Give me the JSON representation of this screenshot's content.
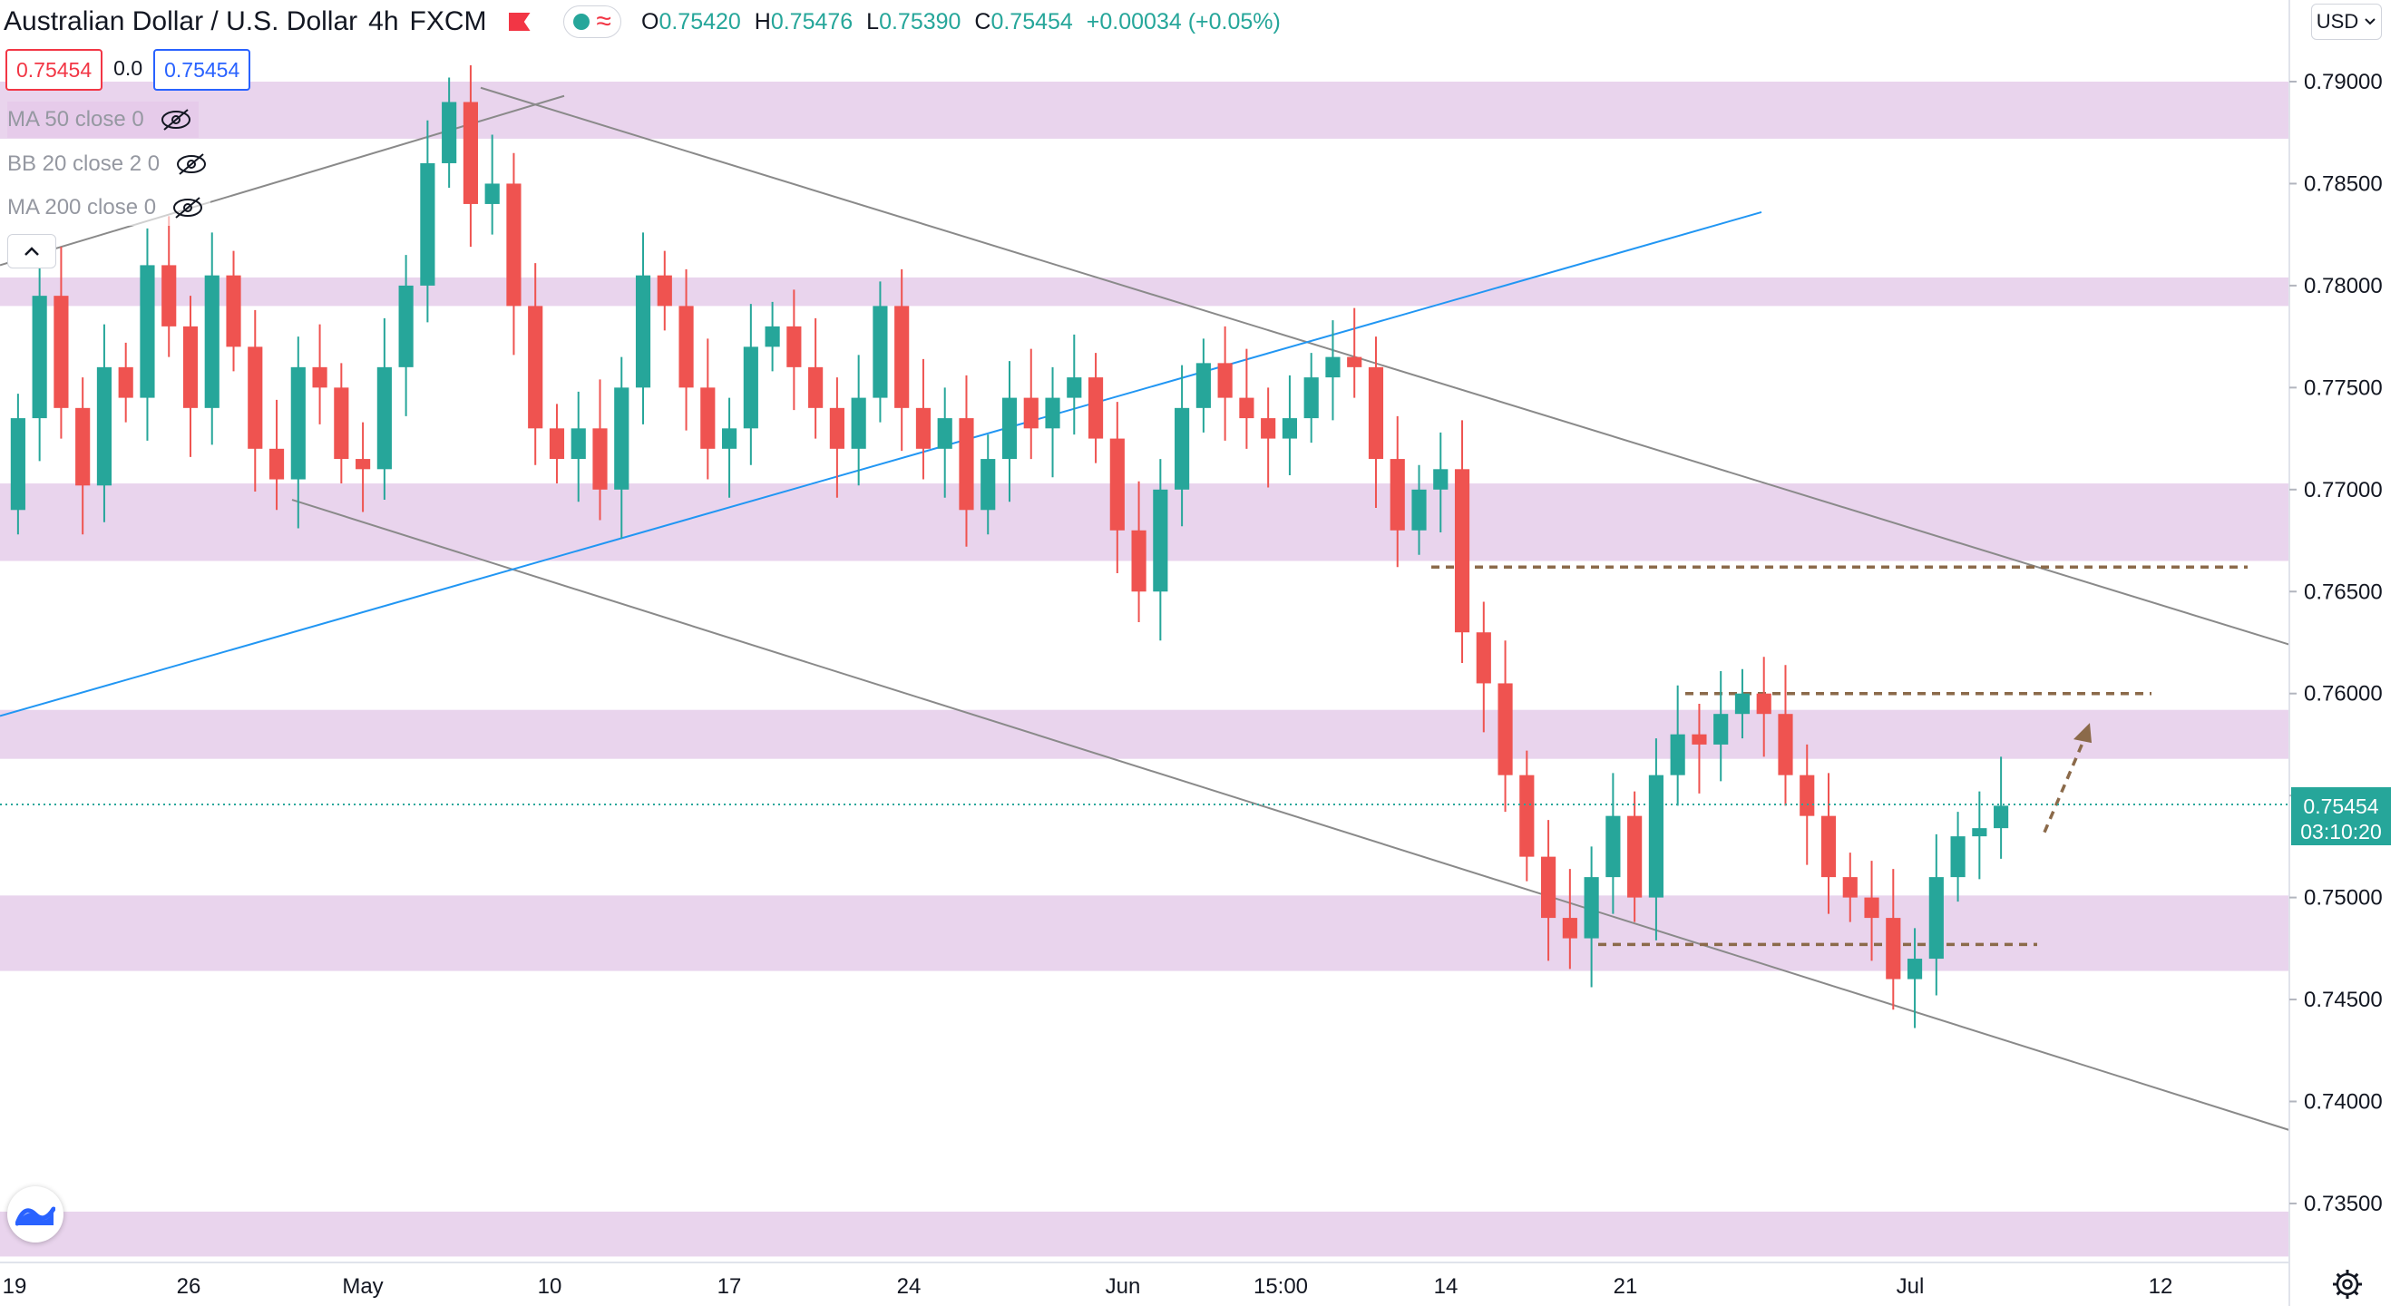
{
  "header": {
    "symbol": "Australian Dollar / U.S. Dollar",
    "interval": "4h",
    "exchange": "FXCM",
    "ohlc": {
      "o_label": "O",
      "o": "0.75420",
      "h_label": "H",
      "h": "0.75476",
      "l_label": "L",
      "l": "0.75390",
      "c_label": "C",
      "c": "0.75454",
      "change": "+0.00034 (+0.05%)"
    },
    "bid": "0.75454",
    "spread": "0.0",
    "ask": "0.75454"
  },
  "indicators": [
    {
      "label": "MA 50 close 0"
    },
    {
      "label": "BB 20 close 2 0"
    },
    {
      "label": "MA 200 close 0"
    }
  ],
  "currency": "USD",
  "last_price": {
    "price": "0.75454",
    "countdown": "03:10:20"
  },
  "colors": {
    "up": "#26a69a",
    "down": "#ef5350",
    "zone": "#e3c8e8",
    "trend_blue": "#2196f3",
    "channel": "#8a8a8a",
    "level": "#8b6a4a",
    "last": "#26a69a"
  },
  "icons": {
    "hidden": "eye-off-icon",
    "collapse": "chevron-up-icon",
    "logo": "tradingview-logo-icon",
    "settings": "gear-icon",
    "menu": "chevron-down-icon"
  },
  "chart_data": {
    "type": "candlestick",
    "ylim": [
      0.7325,
      0.7913
    ],
    "y_ticks": [
      "0.79000",
      "0.78500",
      "0.78000",
      "0.77500",
      "0.77000",
      "0.76500",
      "0.76000",
      "0.75500",
      "0.75000",
      "0.74500",
      "0.74000",
      "0.73500"
    ],
    "x_ticks": [
      "19",
      "26",
      "May",
      "10",
      "17",
      "24",
      "Jun",
      "15:00",
      "14",
      "21",
      "Jul",
      "12"
    ],
    "zones": [
      [
        0.7872,
        0.79
      ],
      [
        0.779,
        0.7804
      ],
      [
        0.7665,
        0.7703
      ],
      [
        0.7568,
        0.7592
      ],
      [
        0.7464,
        0.7501
      ],
      [
        0.7324,
        0.7346
      ]
    ],
    "levels": [
      {
        "value": 0.7662,
        "from": "Jun 13",
        "to": "Jul 10"
      },
      {
        "value": 0.76,
        "from": "Jun 24",
        "to": "Jul 8"
      },
      {
        "value": 0.7477,
        "from": "Jun 20",
        "to": "Jul 5"
      }
    ],
    "trend_lines": [
      {
        "name": "rising support",
        "from": [
          "Apr 18",
          0.7589
        ],
        "to": [
          "Jun 25",
          0.7836
        ]
      }
    ],
    "channel_lines": [
      {
        "from": [
          "Apr 18",
          0.781
        ],
        "to": [
          "May 10",
          0.7893
        ]
      },
      {
        "from": [
          "May 6",
          0.7897
        ],
        "to": [
          "Jul 13",
          0.7624
        ]
      },
      {
        "from": [
          "Apr 29",
          0.7695
        ],
        "to": [
          "Jul 13",
          0.7386
        ]
      }
    ],
    "projection": {
      "from": 0.7532,
      "to": 0.7582
    },
    "ohlc_points": [
      [
        0.769,
        0.7735
      ],
      [
        0.7735,
        0.7795
      ],
      [
        0.7795,
        0.774
      ],
      [
        0.774,
        0.7702
      ],
      [
        0.7702,
        0.776
      ],
      [
        0.776,
        0.7745
      ],
      [
        0.7745,
        0.781
      ],
      [
        0.781,
        0.778
      ],
      [
        0.778,
        0.774
      ],
      [
        0.774,
        0.7805
      ],
      [
        0.7805,
        0.777
      ],
      [
        0.777,
        0.772
      ],
      [
        0.772,
        0.7705
      ],
      [
        0.7705,
        0.776
      ],
      [
        0.776,
        0.775
      ],
      [
        0.775,
        0.7715
      ],
      [
        0.7715,
        0.771
      ],
      [
        0.771,
        0.776
      ],
      [
        0.776,
        0.78
      ],
      [
        0.78,
        0.786
      ],
      [
        0.786,
        0.789
      ],
      [
        0.789,
        0.784
      ],
      [
        0.784,
        0.785
      ],
      [
        0.785,
        0.779
      ],
      [
        0.779,
        0.773
      ],
      [
        0.773,
        0.7715
      ],
      [
        0.7715,
        0.773
      ],
      [
        0.773,
        0.77
      ],
      [
        0.77,
        0.775
      ],
      [
        0.775,
        0.7805
      ],
      [
        0.7805,
        0.779
      ],
      [
        0.779,
        0.775
      ],
      [
        0.775,
        0.772
      ],
      [
        0.772,
        0.773
      ],
      [
        0.773,
        0.777
      ],
      [
        0.777,
        0.778
      ],
      [
        0.778,
        0.776
      ],
      [
        0.776,
        0.774
      ],
      [
        0.774,
        0.772
      ],
      [
        0.772,
        0.7745
      ],
      [
        0.7745,
        0.779
      ],
      [
        0.779,
        0.774
      ],
      [
        0.774,
        0.772
      ],
      [
        0.772,
        0.7735
      ],
      [
        0.7735,
        0.769
      ],
      [
        0.769,
        0.7715
      ],
      [
        0.7715,
        0.7745
      ],
      [
        0.7745,
        0.773
      ],
      [
        0.773,
        0.7745
      ],
      [
        0.7745,
        0.7755
      ],
      [
        0.7755,
        0.7725
      ],
      [
        0.7725,
        0.768
      ],
      [
        0.768,
        0.765
      ],
      [
        0.765,
        0.77
      ],
      [
        0.77,
        0.774
      ],
      [
        0.774,
        0.7762
      ],
      [
        0.7762,
        0.7745
      ],
      [
        0.7745,
        0.7735
      ],
      [
        0.7735,
        0.7725
      ],
      [
        0.7725,
        0.7735
      ],
      [
        0.7735,
        0.7755
      ],
      [
        0.7755,
        0.7765
      ],
      [
        0.7765,
        0.776
      ],
      [
        0.776,
        0.7715
      ],
      [
        0.7715,
        0.768
      ],
      [
        0.768,
        0.77
      ],
      [
        0.77,
        0.771
      ],
      [
        0.771,
        0.763
      ],
      [
        0.763,
        0.7605
      ],
      [
        0.7605,
        0.756
      ],
      [
        0.756,
        0.752
      ],
      [
        0.752,
        0.749
      ],
      [
        0.749,
        0.748
      ],
      [
        0.748,
        0.751
      ],
      [
        0.751,
        0.754
      ],
      [
        0.754,
        0.75
      ],
      [
        0.75,
        0.756
      ],
      [
        0.756,
        0.758
      ],
      [
        0.758,
        0.7575
      ],
      [
        0.7575,
        0.759
      ],
      [
        0.759,
        0.76
      ],
      [
        0.76,
        0.759
      ],
      [
        0.759,
        0.756
      ],
      [
        0.756,
        0.754
      ],
      [
        0.754,
        0.751
      ],
      [
        0.751,
        0.75
      ],
      [
        0.75,
        0.749
      ],
      [
        0.749,
        0.746
      ],
      [
        0.746,
        0.747
      ],
      [
        0.747,
        0.751
      ],
      [
        0.751,
        0.753
      ],
      [
        0.753,
        0.7534
      ],
      [
        0.7534,
        0.7545
      ]
    ]
  }
}
